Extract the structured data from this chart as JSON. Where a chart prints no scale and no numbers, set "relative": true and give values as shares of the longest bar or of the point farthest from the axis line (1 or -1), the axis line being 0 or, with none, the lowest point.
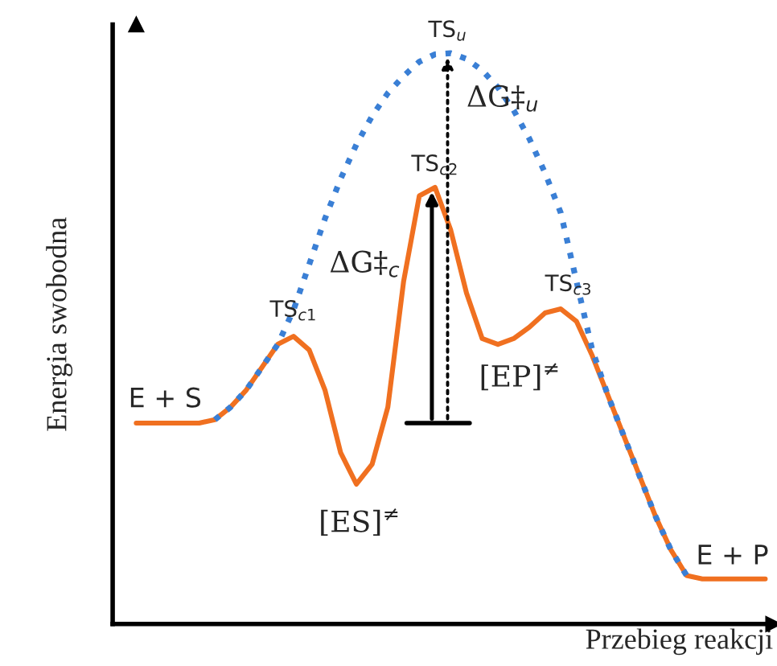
{
  "chart_data": {
    "type": "line",
    "relative": true,
    "xlabel": "Przebieg reakcji",
    "ylabel": "Energia swobodna",
    "categories": [
      null,
      null,
      null,
      null,
      null,
      null,
      null,
      null,
      null,
      null,
      null,
      null,
      null,
      null,
      null,
      null,
      null,
      null,
      null,
      null,
      null,
      null,
      null,
      null,
      null,
      null,
      null,
      null,
      null,
      null,
      null,
      null,
      null,
      null,
      null,
      null,
      null,
      null,
      null,
      null,
      null
    ],
    "series": [
      {
        "color": "#f07020",
        "line_style": "solid",
        "values": [
          0.352,
          0.352,
          0.352,
          0.352,
          0.352,
          0.358,
          0.38,
          0.41,
          0.45,
          0.49,
          0.504,
          0.48,
          0.41,
          0.3,
          0.245,
          0.28,
          0.38,
          0.6,
          0.75,
          0.765,
          0.69,
          0.58,
          0.5,
          0.49,
          0.5,
          0.52,
          0.545,
          0.552,
          0.53,
          0.47,
          0.4,
          0.33,
          0.26,
          0.19,
          0.13,
          0.085,
          0.079,
          0.079,
          0.079,
          0.079,
          0.079
        ]
      },
      {
        "color": "#3a7fd5",
        "line_style": "dotted",
        "values": [
          null,
          null,
          null,
          null,
          null,
          0.358,
          0.38,
          0.41,
          0.45,
          0.49,
          0.55,
          0.63,
          0.71,
          0.78,
          0.84,
          0.89,
          0.93,
          0.96,
          0.985,
          0.998,
          1.0,
          0.99,
          0.97,
          0.94,
          0.9,
          0.85,
          0.79,
          0.72,
          0.6,
          0.48,
          0.4,
          0.33,
          0.26,
          0.19,
          0.13,
          0.085,
          null,
          null,
          null,
          null,
          null
        ]
      }
    ],
    "annotations": [
      "TS$_{u}$",
      "ΔG‡$_{u}$",
      "TS$_{c2}$",
      "ΔG‡$_{c}$",
      "TS$_{c1}$",
      "TS$_{c3}$",
      "[EP]$^{≠}$",
      "[ES]$^{≠}$",
      "E + S",
      "E + P"
    ]
  }
}
